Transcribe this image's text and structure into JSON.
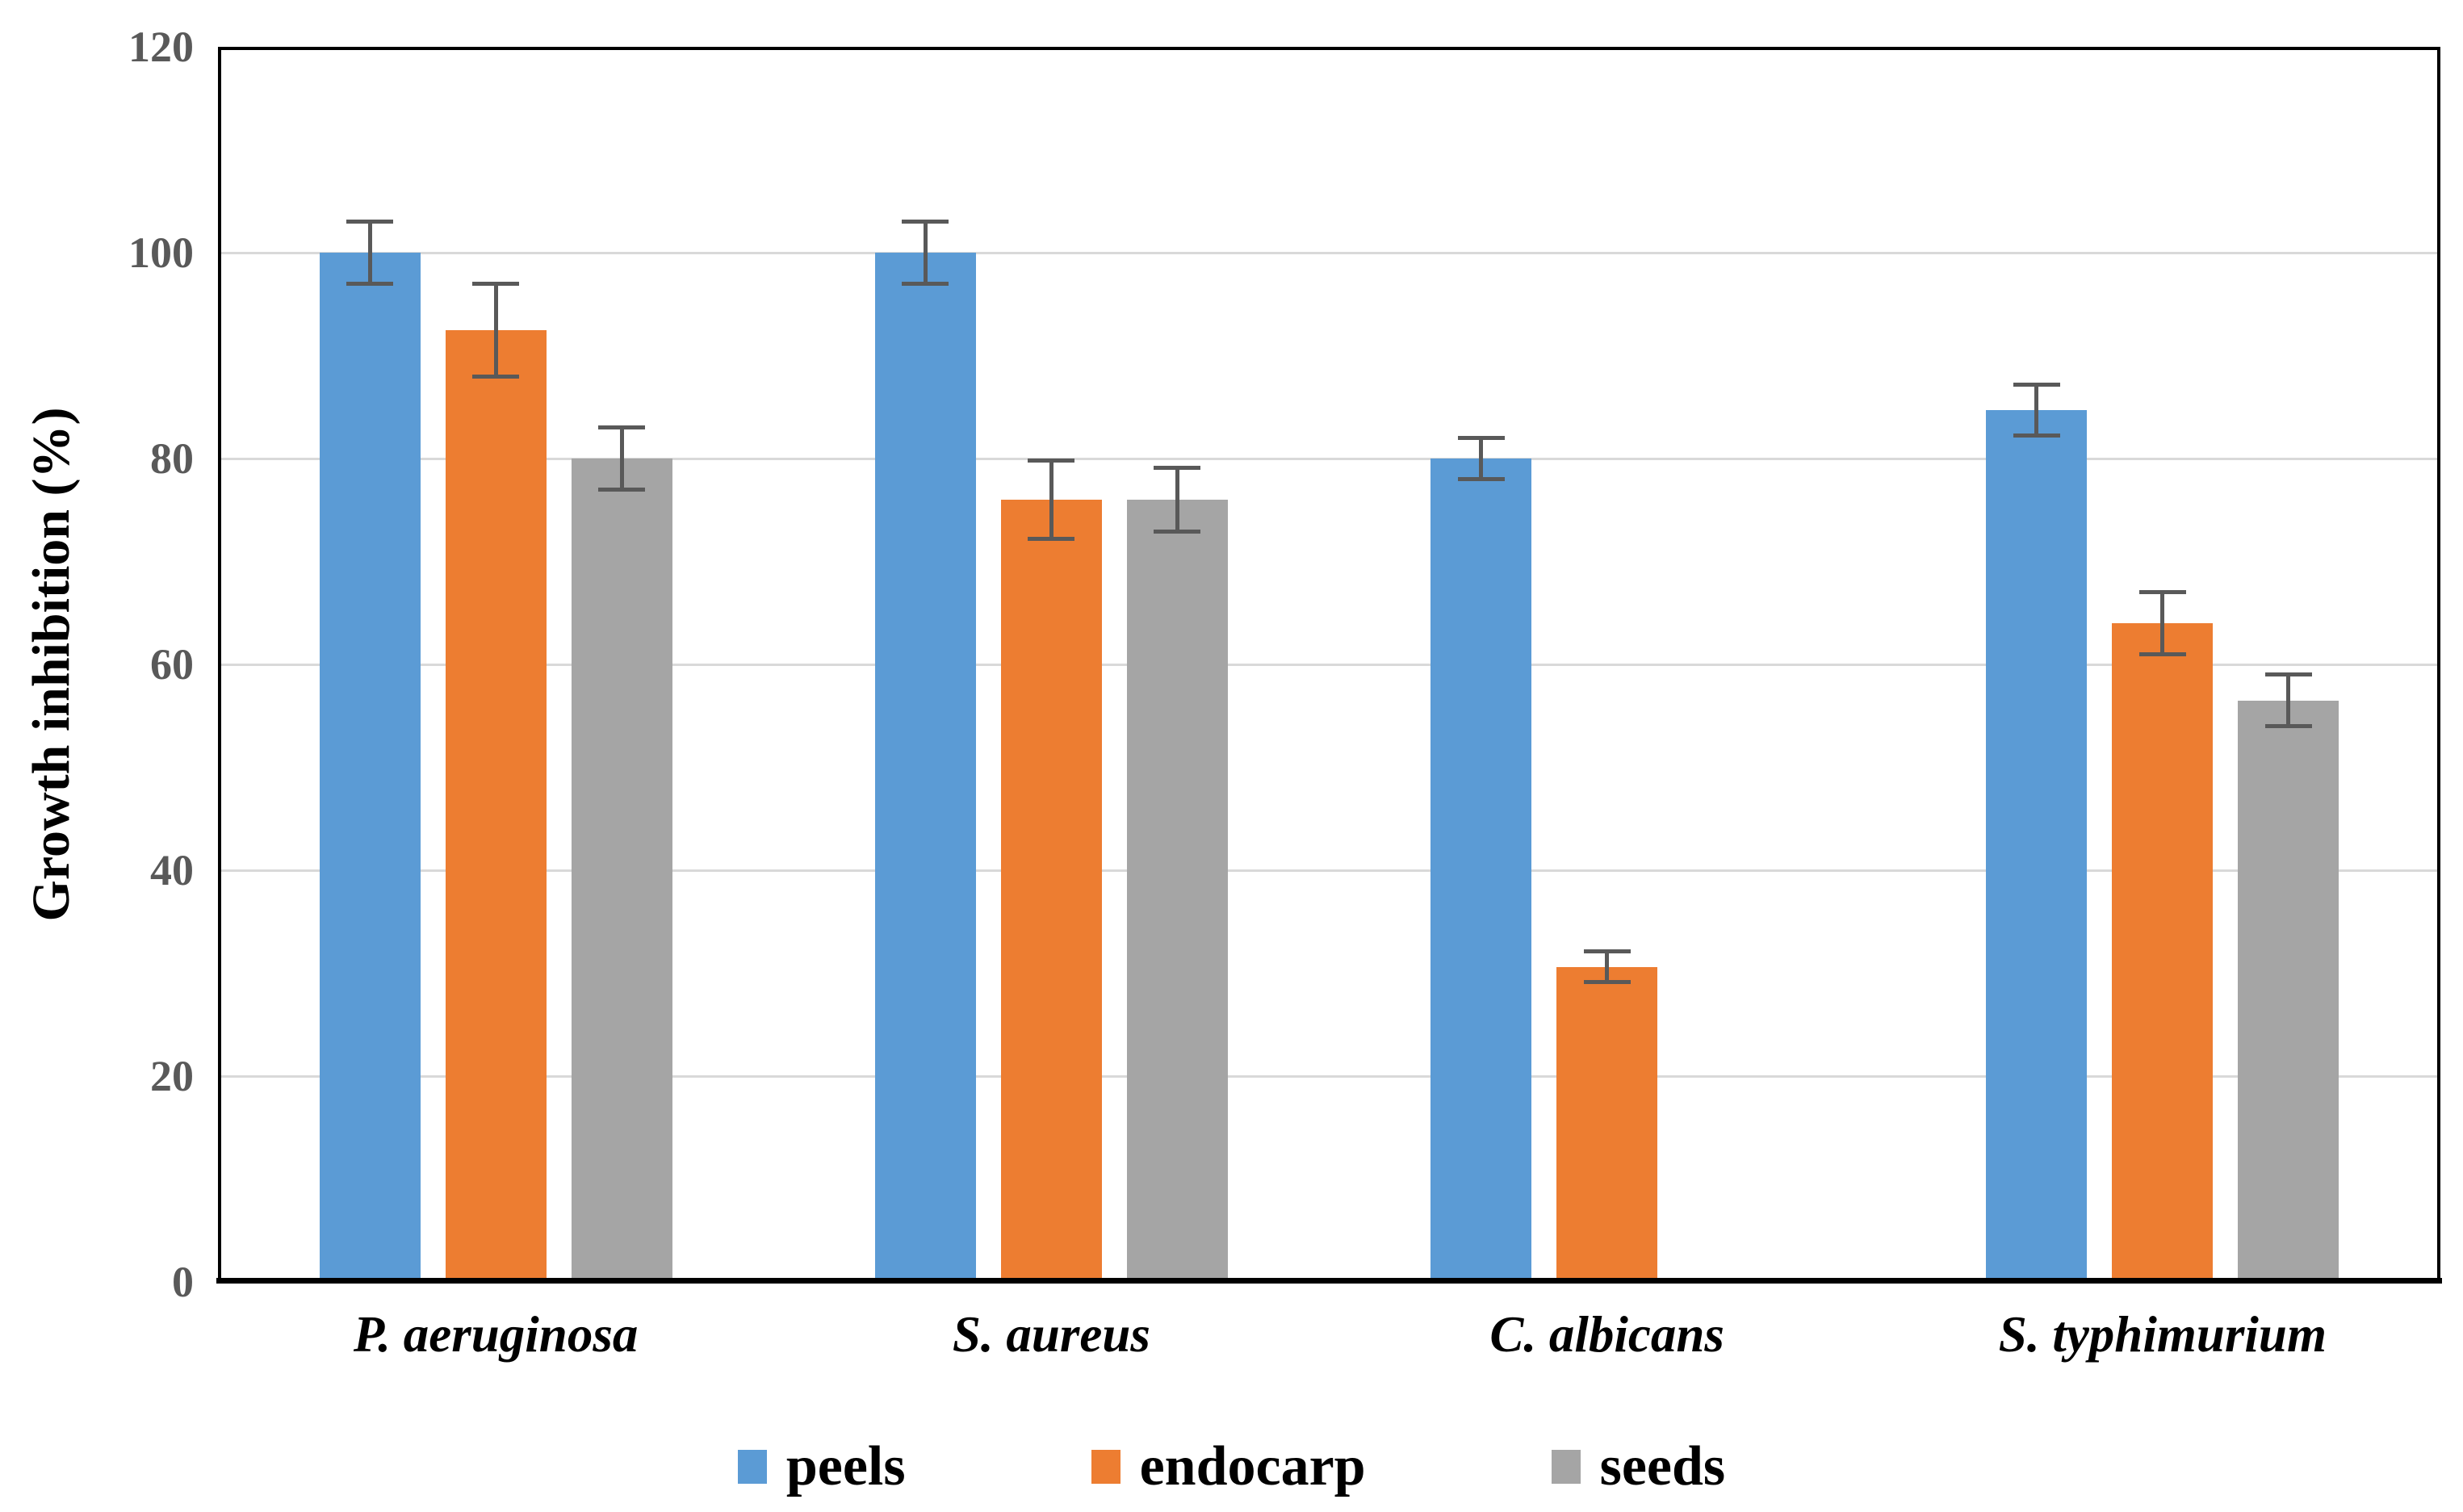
{
  "chart_data": {
    "type": "bar",
    "title": "",
    "xlabel": "",
    "ylabel": "Growth inhibition (%)",
    "ylim": [
      0,
      120
    ],
    "yticks": [
      0,
      20,
      40,
      60,
      80,
      100,
      120
    ],
    "grid": true,
    "legend_position": "bottom",
    "categories": [
      "P. aeruginosa",
      "S. aureus",
      "C. albicans",
      "S. typhimurium"
    ],
    "series": [
      {
        "name": "peels",
        "color": "#5B9BD5",
        "values": [
          100,
          100,
          80,
          84.7
        ],
        "errors": [
          3,
          3,
          2,
          2.5
        ]
      },
      {
        "name": "endocarp",
        "color": "#ED7D31",
        "values": [
          92.5,
          76,
          30.6,
          64
        ],
        "errors": [
          4.5,
          3.8,
          1.5,
          3
        ]
      },
      {
        "name": "seeds",
        "color": "#A5A5A5",
        "values": [
          80,
          76,
          null,
          56.5
        ],
        "errors": [
          3,
          3.1,
          null,
          2.5
        ]
      }
    ],
    "colors": {
      "error_bar": "#595959",
      "gridline": "#D9D9D9",
      "axis_border": "#000000",
      "tick_label": "#595959",
      "text": "#000000",
      "background": "#FFFFFF"
    }
  }
}
